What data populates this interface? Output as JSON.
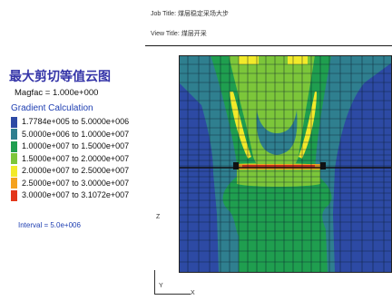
{
  "header": {
    "job_title": "Job Title: 煤层稳定采场大步",
    "view_title": "View Title: 煤层开采"
  },
  "legend": {
    "title": "最大剪切等值云图",
    "magfac": "Magfac = 1.000e+000",
    "calc_label": "Gradient Calculation",
    "interval": "Interval = 5.0e+006",
    "entries": [
      {
        "label": "1.7784e+005 to 5.0000e+006",
        "color": "#2d4aa4"
      },
      {
        "label": "5.0000e+006 to 1.0000e+007",
        "color": "#2f7f8f"
      },
      {
        "label": "1.0000e+007 to 1.5000e+007",
        "color": "#1f9e4f"
      },
      {
        "label": "1.5000e+007 to 2.0000e+007",
        "color": "#7cc63a"
      },
      {
        "label": "2.0000e+007 to 2.5000e+007",
        "color": "#f2ea2a"
      },
      {
        "label": "2.5000e+007 to 3.0000e+007",
        "color": "#f5a21e"
      },
      {
        "label": "3.0000e+007 to 3.1072e+007",
        "color": "#e3361a"
      }
    ]
  },
  "axes": {
    "z": "Z",
    "y": "Y",
    "x": "X"
  },
  "colors": {
    "blue": "#2d4aa4",
    "teal": "#2f7f8f",
    "green": "#1f9e4f",
    "light_green": "#7cc63a",
    "yellow": "#f2ea2a",
    "orange": "#f5a21e",
    "red": "#e3361a"
  }
}
